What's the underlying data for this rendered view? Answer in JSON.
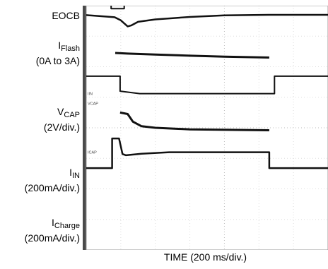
{
  "chart_data": {
    "type": "line",
    "xlabel": "TIME (200 ms/div.)",
    "x_per_div_ms": 200,
    "grid": true,
    "channel_labels": [
      {
        "main": "EOCB",
        "sub": "",
        "scale": ""
      },
      {
        "main": "I",
        "sub": "Flash",
        "scale": "(0A to 3A)"
      },
      {
        "main": "V",
        "sub": "CAP",
        "scale": "(2V/div.)"
      },
      {
        "main": "I",
        "sub": "IN",
        "scale": "(200mA/div.)"
      },
      {
        "main": "I",
        "sub": "Charge",
        "scale": "(200mA/div.)"
      }
    ],
    "marker_tags": [
      "EOCB",
      "VSENSE",
      "VCAP",
      "IIN",
      "ICAP"
    ],
    "series": [
      {
        "tag": "EOCB",
        "points": [
          [
            0,
            5.68
          ],
          [
            0.24,
            5.68
          ],
          [
            0.24,
            5.2
          ],
          [
            1.75,
            5.2
          ],
          [
            2.2,
            5.2
          ],
          [
            5.45,
            5.2
          ],
          [
            5.45,
            5.68
          ],
          [
            7,
            5.68
          ]
        ]
      },
      {
        "tag": "EOCB-pulse",
        "points": [
          [
            0.5,
            5.3
          ],
          [
            0.84,
            5.3
          ]
        ]
      },
      {
        "tag": "VSENSE",
        "points": [
          [
            0,
            4.34
          ],
          [
            0.72,
            4.34
          ],
          [
            0.72,
            3.9
          ],
          [
            1.1,
            3.9
          ],
          [
            1.1,
            4.34
          ],
          [
            7,
            4.34
          ]
        ]
      },
      {
        "tag": "VCAP",
        "points": [
          [
            0,
            3.69
          ],
          [
            0.82,
            3.62
          ],
          [
            1.0,
            3.52
          ],
          [
            1.2,
            3.32
          ],
          [
            1.3,
            3.35
          ],
          [
            1.5,
            3.47
          ],
          [
            2.0,
            3.55
          ],
          [
            3.0,
            3.63
          ],
          [
            4.0,
            3.68
          ],
          [
            5.28,
            3.7
          ],
          [
            5.45,
            3.7
          ],
          [
            7,
            3.7
          ]
        ]
      },
      {
        "tag": "VCAP-line2",
        "points": [
          [
            0.84,
            2.45
          ],
          [
            1.2,
            2.43
          ],
          [
            2.0,
            2.4
          ],
          [
            3.0,
            2.36
          ],
          [
            4.0,
            2.33
          ],
          [
            5.3,
            2.3
          ]
        ]
      },
      {
        "tag": "IIN",
        "points": [
          [
            0,
            1.69
          ],
          [
            0.98,
            1.69
          ],
          [
            0.98,
            1.2
          ],
          [
            1.55,
            1.12
          ],
          [
            5.45,
            1.12
          ],
          [
            5.45,
            1.69
          ],
          [
            7,
            1.69
          ]
        ]
      },
      {
        "tag": "IIN-line2",
        "points": [
          [
            0.98,
            0.5
          ],
          [
            1.2,
            0.45
          ],
          [
            1.35,
            0.2
          ],
          [
            1.6,
            0.05
          ],
          [
            2.0,
            0.0
          ],
          [
            3.0,
            -0.05
          ],
          [
            5.3,
            -0.08
          ]
        ]
      },
      {
        "tag": "ICAP",
        "points": [
          [
            0,
            -1.32
          ],
          [
            0.75,
            -1.32
          ],
          [
            0.75,
            -0.35
          ],
          [
            0.95,
            -0.35
          ],
          [
            1.05,
            -0.86
          ],
          [
            1.15,
            -0.9
          ],
          [
            1.6,
            -0.85
          ],
          [
            2.4,
            -0.8
          ],
          [
            5.3,
            -0.8
          ],
          [
            5.3,
            -1.32
          ],
          [
            7,
            -1.32
          ]
        ]
      }
    ]
  }
}
